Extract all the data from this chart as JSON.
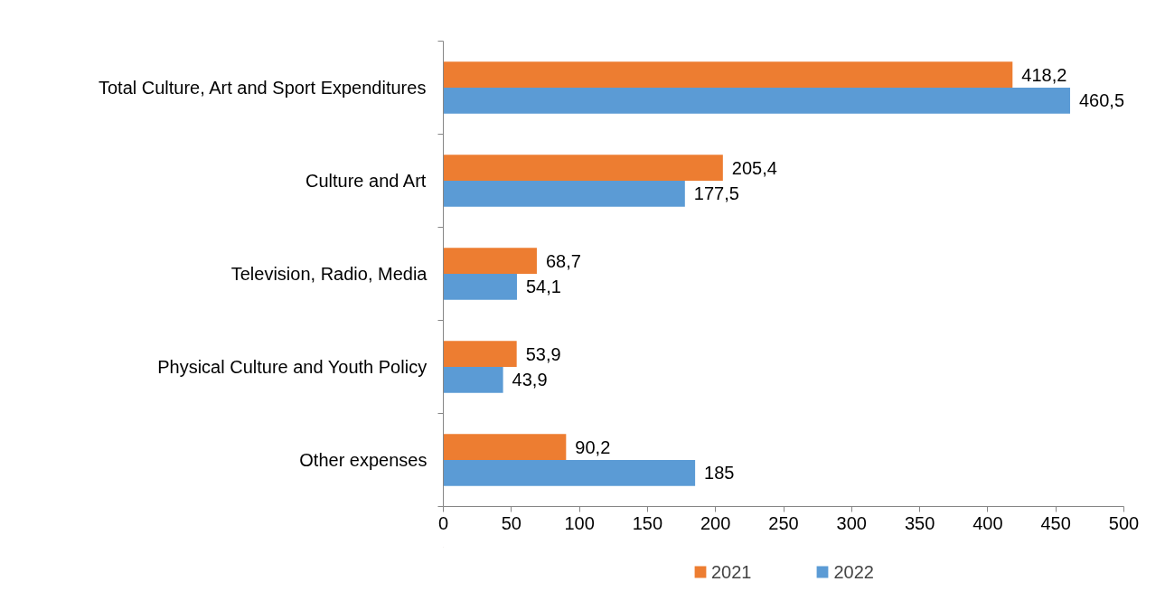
{
  "chart_data": {
    "type": "bar",
    "orientation": "horizontal",
    "categories": [
      "Total Culture, Art and Sport Expenditures",
      "Culture and Art",
      "Television, Radio, Media",
      "Physical Culture and Youth Policy",
      "Other expenses"
    ],
    "series": [
      {
        "name": "2021",
        "color": "#ed7d31",
        "values": [
          418.2,
          205.4,
          68.7,
          53.9,
          90.2
        ],
        "value_labels": [
          "418,2",
          "205,4",
          "68,7",
          "53,9",
          "90,2"
        ]
      },
      {
        "name": "2022",
        "color": "#5b9bd5",
        "values": [
          460.5,
          177.5,
          54.1,
          43.9,
          185
        ],
        "value_labels": [
          "460,5",
          "177,5",
          "54,1",
          "43,9",
          "185"
        ]
      }
    ],
    "xlim": [
      0,
      500
    ],
    "xticks": [
      0,
      50,
      100,
      150,
      200,
      250,
      300,
      350,
      400,
      450,
      500
    ],
    "grid": false,
    "legend": "bottom"
  }
}
